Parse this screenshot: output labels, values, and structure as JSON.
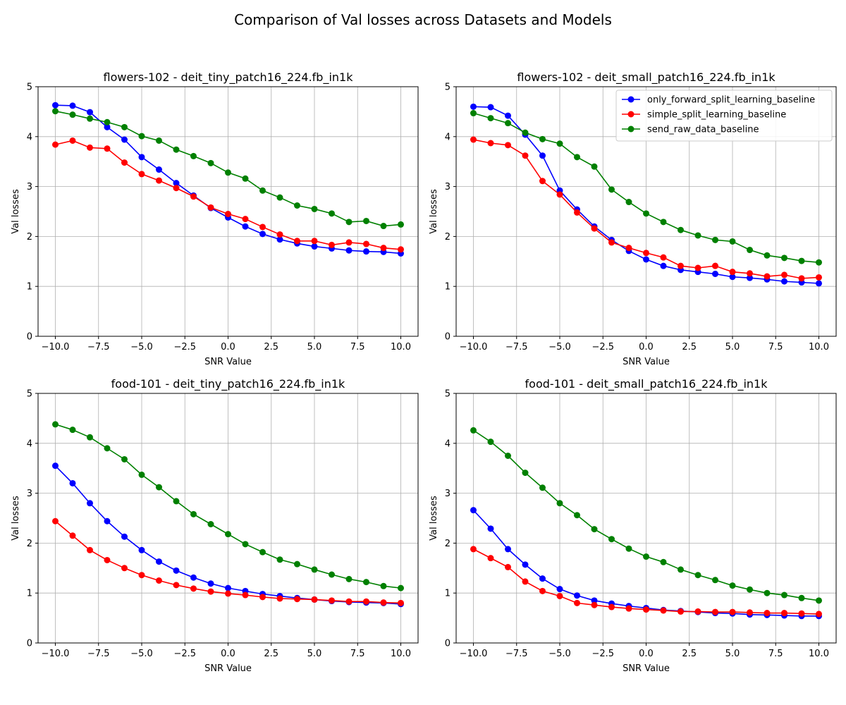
{
  "suptitle": "Comparison of Val losses across Datasets and Models",
  "legend_series": [
    "only_forward_split_learning_baseline",
    "simple_split_learning_baseline",
    "send_raw_data_baseline"
  ],
  "colors": {
    "only_forward_split_learning_baseline": "#0000ff",
    "simple_split_learning_baseline": "#ff0000",
    "send_raw_data_baseline": "#008000",
    "grid": "#b0b0b0"
  },
  "chart_data": [
    {
      "type": "line",
      "title": "flowers-102 - deit_tiny_patch16_224.fb_in1k",
      "xlabel": "SNR Value",
      "ylabel": "Val losses",
      "xlim": [
        -11,
        11
      ],
      "ylim": [
        0,
        5
      ],
      "xticks": [
        "−10.0",
        "−7.5",
        "−5.0",
        "−2.5",
        "0.0",
        "2.5",
        "5.0",
        "7.5",
        "10.0"
      ],
      "yticks": [
        "0",
        "1",
        "2",
        "3",
        "4",
        "5"
      ],
      "grid": true,
      "legend": "none",
      "x": [
        -10,
        -9,
        -8,
        -7,
        -6,
        -5,
        -4,
        -3,
        -2,
        -1,
        0,
        1,
        2,
        3,
        4,
        5,
        6,
        7,
        8,
        9,
        10
      ],
      "series": [
        {
          "name": "only_forward_split_learning_baseline",
          "values": [
            4.63,
            4.62,
            4.49,
            4.19,
            3.94,
            3.59,
            3.34,
            3.07,
            2.82,
            2.57,
            2.38,
            2.2,
            2.05,
            1.94,
            1.86,
            1.8,
            1.76,
            1.72,
            1.7,
            1.69,
            1.66
          ]
        },
        {
          "name": "simple_split_learning_baseline",
          "values": [
            3.84,
            3.92,
            3.78,
            3.76,
            3.48,
            3.25,
            3.12,
            2.97,
            2.8,
            2.58,
            2.45,
            2.35,
            2.19,
            2.04,
            1.91,
            1.91,
            1.83,
            1.88,
            1.85,
            1.77,
            1.74
          ]
        },
        {
          "name": "send_raw_data_baseline",
          "values": [
            4.51,
            4.44,
            4.36,
            4.29,
            4.19,
            4.01,
            3.92,
            3.74,
            3.61,
            3.47,
            3.28,
            3.16,
            2.92,
            2.78,
            2.62,
            2.55,
            2.46,
            2.29,
            2.31,
            2.21,
            2.24
          ]
        }
      ]
    },
    {
      "type": "line",
      "title": "flowers-102 - deit_small_patch16_224.fb_in1k",
      "xlabel": "SNR Value",
      "ylabel": "Val losses",
      "xlim": [
        -11,
        11
      ],
      "ylim": [
        0,
        5
      ],
      "xticks": [
        "−10.0",
        "−7.5",
        "−5.0",
        "−2.5",
        "0.0",
        "2.5",
        "5.0",
        "7.5",
        "10.0"
      ],
      "yticks": [
        "0",
        "1",
        "2",
        "3",
        "4",
        "5"
      ],
      "grid": true,
      "legend": "top-right",
      "x": [
        -10,
        -9,
        -8,
        -7,
        -6,
        -5,
        -4,
        -3,
        -2,
        -1,
        0,
        1,
        2,
        3,
        4,
        5,
        6,
        7,
        8,
        9,
        10
      ],
      "series": [
        {
          "name": "only_forward_split_learning_baseline",
          "values": [
            4.6,
            4.59,
            4.42,
            4.04,
            3.62,
            2.92,
            2.54,
            2.2,
            1.93,
            1.71,
            1.54,
            1.41,
            1.33,
            1.29,
            1.25,
            1.19,
            1.17,
            1.14,
            1.1,
            1.08,
            1.06
          ]
        },
        {
          "name": "simple_split_learning_baseline",
          "values": [
            3.94,
            3.87,
            3.83,
            3.62,
            3.11,
            2.84,
            2.48,
            2.16,
            1.88,
            1.77,
            1.67,
            1.58,
            1.41,
            1.37,
            1.41,
            1.29,
            1.26,
            1.2,
            1.23,
            1.16,
            1.18
          ]
        },
        {
          "name": "send_raw_data_baseline",
          "values": [
            4.47,
            4.37,
            4.27,
            4.08,
            3.95,
            3.86,
            3.59,
            3.4,
            2.94,
            2.69,
            2.46,
            2.29,
            2.13,
            2.02,
            1.93,
            1.9,
            1.73,
            1.62,
            1.57,
            1.51,
            1.48
          ]
        }
      ]
    },
    {
      "type": "line",
      "title": "food-101 - deit_tiny_patch16_224.fb_in1k",
      "xlabel": "SNR Value",
      "ylabel": "Val losses",
      "xlim": [
        -11,
        11
      ],
      "ylim": [
        0,
        5
      ],
      "xticks": [
        "−10.0",
        "−7.5",
        "−5.0",
        "−2.5",
        "0.0",
        "2.5",
        "5.0",
        "7.5",
        "10.0"
      ],
      "yticks": [
        "0",
        "1",
        "2",
        "3",
        "4",
        "5"
      ],
      "grid": true,
      "legend": "none",
      "x": [
        -10,
        -9,
        -8,
        -7,
        -6,
        -5,
        -4,
        -3,
        -2,
        -1,
        0,
        1,
        2,
        3,
        4,
        5,
        6,
        7,
        8,
        9,
        10
      ],
      "series": [
        {
          "name": "only_forward_split_learning_baseline",
          "values": [
            3.55,
            3.2,
            2.8,
            2.44,
            2.13,
            1.86,
            1.63,
            1.45,
            1.31,
            1.19,
            1.1,
            1.04,
            0.98,
            0.94,
            0.9,
            0.87,
            0.84,
            0.82,
            0.81,
            0.8,
            0.78
          ]
        },
        {
          "name": "simple_split_learning_baseline",
          "values": [
            2.44,
            2.15,
            1.86,
            1.66,
            1.5,
            1.36,
            1.25,
            1.16,
            1.09,
            1.03,
            0.99,
            0.96,
            0.92,
            0.89,
            0.88,
            0.87,
            0.85,
            0.83,
            0.83,
            0.81,
            0.8
          ]
        },
        {
          "name": "send_raw_data_baseline",
          "values": [
            4.38,
            4.27,
            4.12,
            3.9,
            3.68,
            3.37,
            3.12,
            2.84,
            2.58,
            2.38,
            2.18,
            1.98,
            1.82,
            1.67,
            1.58,
            1.47,
            1.37,
            1.28,
            1.22,
            1.14,
            1.1
          ]
        }
      ]
    },
    {
      "type": "line",
      "title": "food-101 - deit_small_patch16_224.fb_in1k",
      "xlabel": "SNR Value",
      "ylabel": "Val losses",
      "xlim": [
        -11,
        11
      ],
      "ylim": [
        0,
        5
      ],
      "xticks": [
        "−10.0",
        "−7.5",
        "−5.0",
        "−2.5",
        "0.0",
        "2.5",
        "5.0",
        "7.5",
        "10.0"
      ],
      "yticks": [
        "0",
        "1",
        "2",
        "3",
        "4",
        "5"
      ],
      "grid": true,
      "legend": "none",
      "x": [
        -10,
        -9,
        -8,
        -7,
        -6,
        -5,
        -4,
        -3,
        -2,
        -1,
        0,
        1,
        2,
        3,
        4,
        5,
        6,
        7,
        8,
        9,
        10
      ],
      "series": [
        {
          "name": "only_forward_split_learning_baseline",
          "values": [
            2.66,
            2.29,
            1.88,
            1.57,
            1.29,
            1.08,
            0.95,
            0.85,
            0.79,
            0.74,
            0.7,
            0.66,
            0.64,
            0.62,
            0.6,
            0.59,
            0.57,
            0.56,
            0.55,
            0.54,
            0.54
          ]
        },
        {
          "name": "simple_split_learning_baseline",
          "values": [
            1.88,
            1.7,
            1.52,
            1.23,
            1.04,
            0.94,
            0.8,
            0.76,
            0.72,
            0.69,
            0.67,
            0.65,
            0.63,
            0.63,
            0.62,
            0.62,
            0.61,
            0.6,
            0.6,
            0.59,
            0.58
          ]
        },
        {
          "name": "send_raw_data_baseline",
          "values": [
            4.26,
            4.03,
            3.75,
            3.41,
            3.11,
            2.8,
            2.56,
            2.28,
            2.08,
            1.89,
            1.73,
            1.62,
            1.47,
            1.36,
            1.26,
            1.15,
            1.07,
            1.0,
            0.96,
            0.9,
            0.85
          ]
        }
      ]
    }
  ]
}
